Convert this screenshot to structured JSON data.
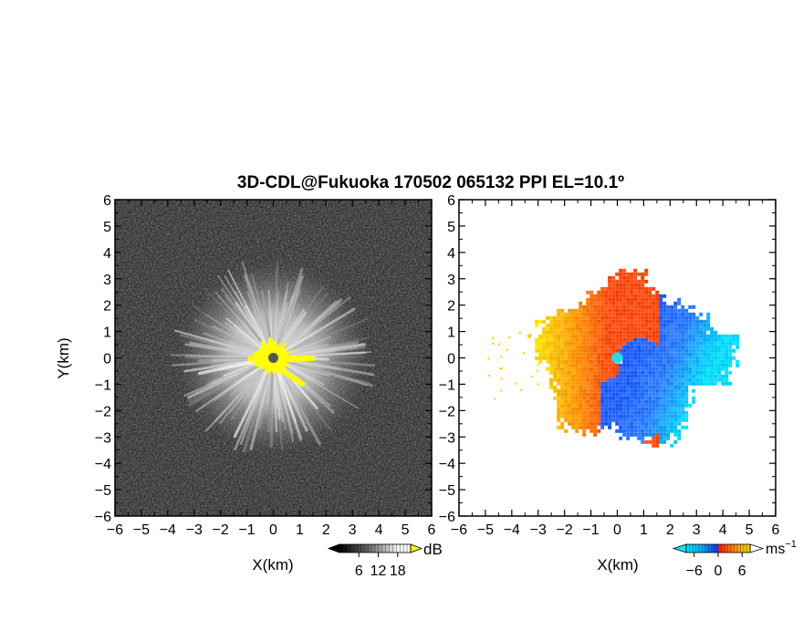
{
  "title": "3D-CDL@Fukuoka 170502 065132 PPI EL=10.1º",
  "chart_data": [
    {
      "type": "heatmap",
      "panel": "reflectivity / SNR",
      "xlabel": "X(km)",
      "ylabel": "Y(km)",
      "xlim": [
        -6,
        6
      ],
      "ylim": [
        -6,
        6
      ],
      "xticks": [
        "−6",
        "−5",
        "−4",
        "−3",
        "−2",
        "−1",
        "0",
        "1",
        "2",
        "3",
        "4",
        "5",
        "6"
      ],
      "yticks": [
        "6",
        "5",
        "4",
        "3",
        "2",
        "1",
        "0",
        "−1",
        "−2",
        "−3",
        "−4",
        "−5",
        "−6"
      ],
      "colorbar": {
        "unit": "dB",
        "tick_labels": [
          "6",
          "12",
          "18"
        ],
        "range": [
          0,
          22
        ],
        "colors": [
          "#000000",
          "#444444",
          "#888888",
          "#cccccc",
          "#ffffff",
          "#ffff00"
        ]
      },
      "features": {
        "echo_radius_km": 3.4,
        "saturated_core_radius_km": 0.8,
        "background": "#1a1a1a",
        "core_color": "#ffff00",
        "center_marker_color": "#555555"
      }
    },
    {
      "type": "heatmap",
      "panel": "radial velocity",
      "xlabel": "X(km)",
      "xlim": [
        -6,
        6
      ],
      "ylim": [
        -6,
        6
      ],
      "xticks": [
        "−6",
        "−5",
        "−4",
        "−3",
        "−2",
        "−1",
        "0",
        "1",
        "2",
        "3",
        "4",
        "5",
        "6"
      ],
      "yticks": [
        "6",
        "5",
        "4",
        "3",
        "2",
        "1",
        "0",
        "−1",
        "−2",
        "−3",
        "−4",
        "−5",
        "−6"
      ],
      "colorbar": {
        "unit": "ms",
        "unit_sup": "−1",
        "tick_labels": [
          "−6",
          "0",
          "6"
        ],
        "range": [
          -8,
          8
        ],
        "colors": [
          "#00e5ff",
          "#00aaff",
          "#0044ff",
          "#ff2200",
          "#ff8800",
          "#ffdd00"
        ]
      },
      "features": {
        "echo_radius_km": 3.2,
        "approaching_color": "#1e5cff",
        "receding_color": "#ff4a10",
        "center_marker_color": "#22ddee"
      }
    }
  ]
}
